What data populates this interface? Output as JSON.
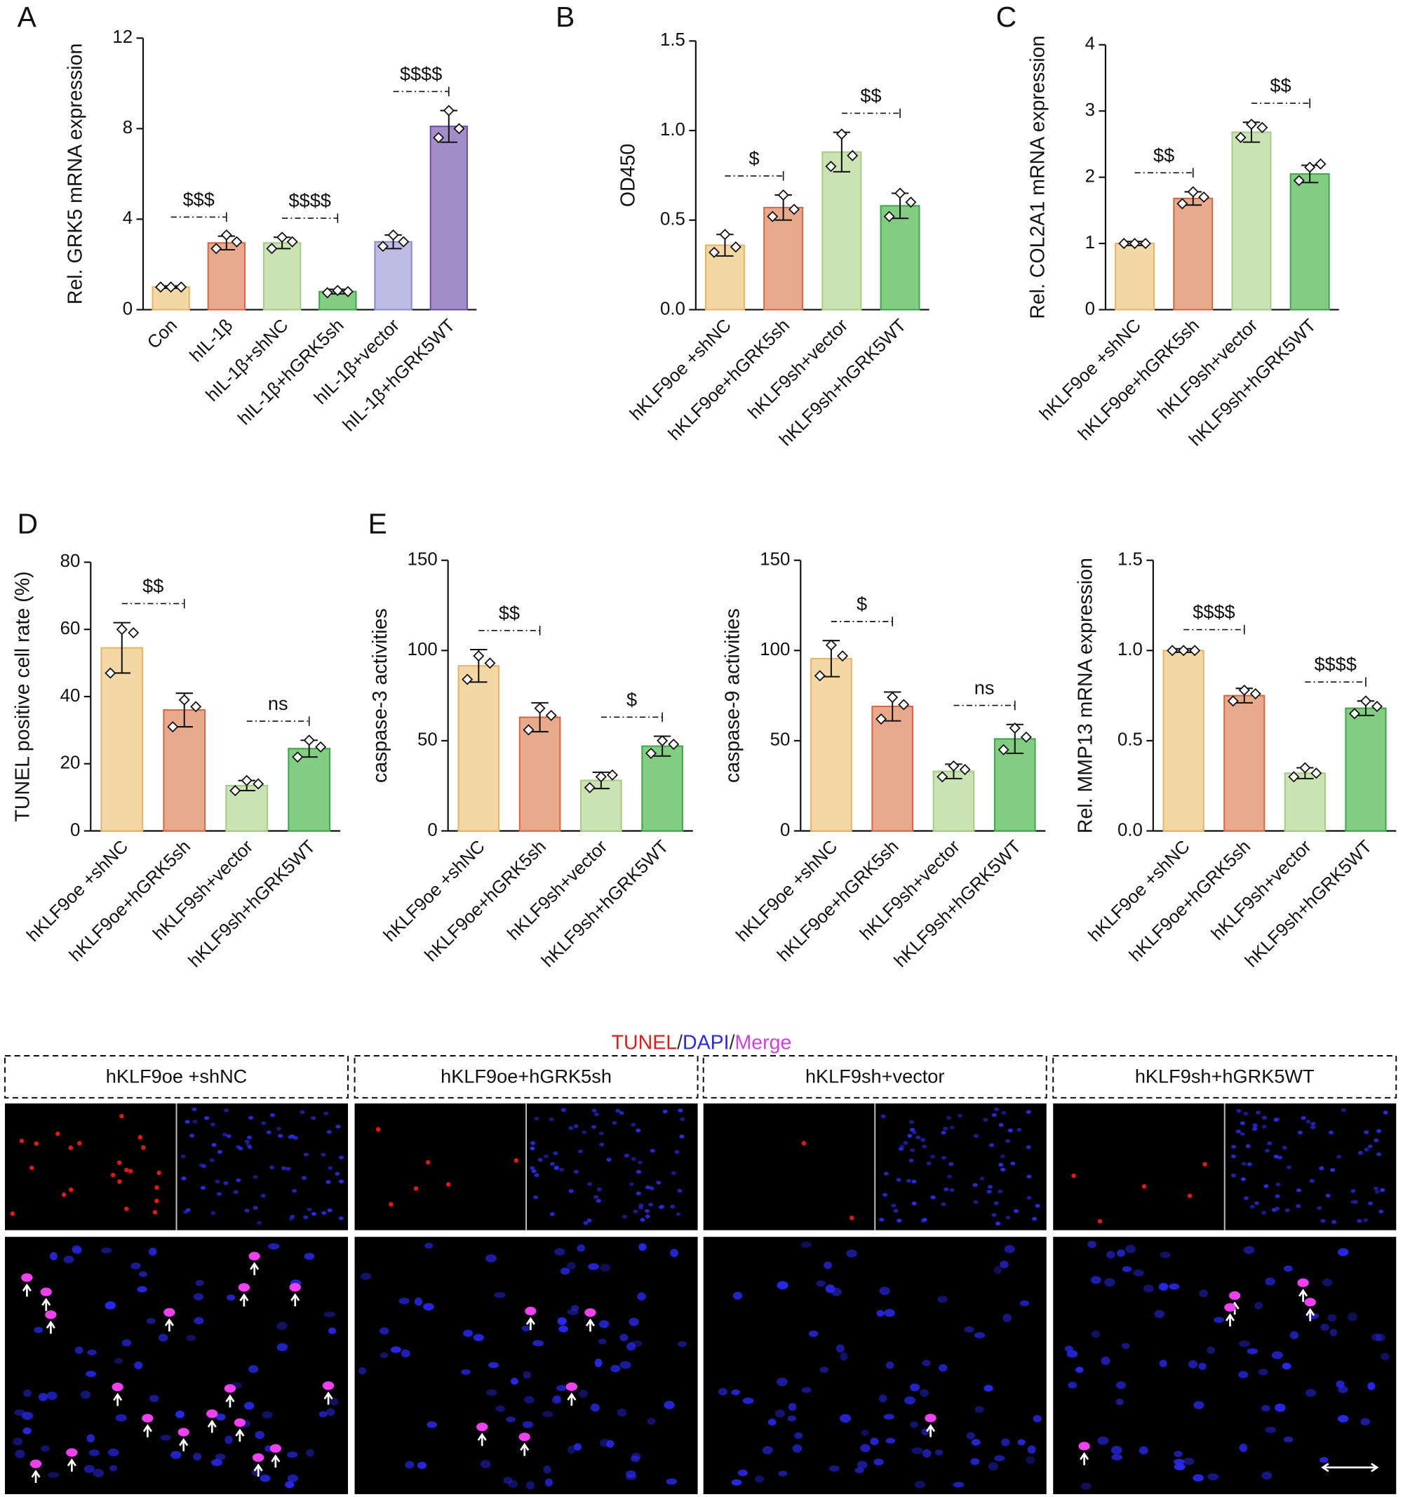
{
  "panel_labels": [
    "A",
    "B",
    "C",
    "D",
    "E"
  ],
  "chart_data": [
    {
      "type": "bar",
      "ylabel": "Rel. GRK5 mRNA expression",
      "categories": [
        "Con",
        "hIL-1β",
        "hIL-1β+shNC",
        "hIL-1β+hGRK5sh",
        "hIL-1β+vector",
        "hIL-1β+hGRK5WT"
      ],
      "values": [
        1.0,
        2.95,
        2.95,
        0.8,
        3.0,
        8.1
      ],
      "errors": [
        0.05,
        0.3,
        0.25,
        0.1,
        0.3,
        0.7
      ],
      "points": [
        [
          1.0,
          1.0,
          1.0
        ],
        [
          2.7,
          3.3,
          3.0
        ],
        [
          2.7,
          3.2,
          3.0
        ],
        [
          0.75,
          0.85,
          0.8
        ],
        [
          2.8,
          3.3,
          3.0
        ],
        [
          7.6,
          8.8,
          8.0
        ]
      ],
      "colors": [
        "#f3d7a4",
        "#e9a98c",
        "#cbe3b3",
        "#83cd83",
        "#bcbce5",
        "#a38dc9"
      ],
      "edge_colors": [
        "#e6b463",
        "#d26845",
        "#a5cc86",
        "#3ea64b",
        "#8b8bd0",
        "#6a4fa8"
      ],
      "ylim": [
        0,
        12
      ],
      "yticks": [
        0,
        4,
        8,
        12
      ],
      "annotations": [
        {
          "label": "$$$",
          "from": 0,
          "to": 1
        },
        {
          "label": "$$$$",
          "from": 2,
          "to": 3
        },
        {
          "label": "$$$$",
          "from": 4,
          "to": 5
        }
      ]
    },
    {
      "type": "bar",
      "ylabel": "OD450",
      "categories": [
        "hKLF9oe +shNC",
        "hKLF9oe+hGRK5sh",
        "hKLF9sh+vector",
        "hKLF9sh+hGRK5WT"
      ],
      "values": [
        0.36,
        0.57,
        0.88,
        0.58
      ],
      "errors": [
        0.06,
        0.07,
        0.11,
        0.07
      ],
      "points": [
        [
          0.32,
          0.42,
          0.35
        ],
        [
          0.52,
          0.64,
          0.56
        ],
        [
          0.8,
          0.98,
          0.86
        ],
        [
          0.52,
          0.65,
          0.6
        ]
      ],
      "colors": [
        "#f3d7a4",
        "#e9a98c",
        "#cbe3b3",
        "#83cd83"
      ],
      "edge_colors": [
        "#e6b463",
        "#d26845",
        "#a5cc86",
        "#3ea64b"
      ],
      "ylim": [
        0,
        1.5
      ],
      "yticks": [
        {
          "value": 0,
          "label": "0.0"
        },
        0.5,
        {
          "value": 1,
          "label": "1.0"
        },
        1.5
      ],
      "annotations": [
        {
          "label": "$",
          "from": 0,
          "to": 1
        },
        {
          "label": "$$",
          "from": 2,
          "to": 3
        }
      ]
    },
    {
      "type": "bar",
      "ylabel": "Rel. COL2A1 mRNA expression",
      "categories": [
        "hKLF9oe +shNC",
        "hKLF9oe+hGRK5sh",
        "hKLF9sh+vector",
        "hKLF9sh+hGRK5WT"
      ],
      "values": [
        1.0,
        1.68,
        2.68,
        2.05
      ],
      "errors": [
        0.03,
        0.1,
        0.15,
        0.13
      ],
      "points": [
        [
          1.0,
          1.0,
          1.0
        ],
        [
          1.6,
          1.78,
          1.7
        ],
        [
          2.6,
          2.8,
          2.75
        ],
        [
          1.95,
          2.15,
          2.2
        ]
      ],
      "colors": [
        "#f3d7a4",
        "#e9a98c",
        "#cbe3b3",
        "#83cd83"
      ],
      "edge_colors": [
        "#e6b463",
        "#d26845",
        "#a5cc86",
        "#3ea64b"
      ],
      "ylim": [
        0,
        4
      ],
      "yticks": [
        0,
        1,
        2,
        3,
        4
      ],
      "annotations": [
        {
          "label": "$$",
          "from": 0,
          "to": 1
        },
        {
          "label": "$$",
          "from": 2,
          "to": 3
        }
      ]
    },
    {
      "type": "bar",
      "ylabel": "TUNEL positive cell rate (%)",
      "categories": [
        "hKLF9oe +shNC",
        "hKLF9oe+hGRK5sh",
        "hKLF9sh+vector",
        "hKLF9sh+hGRK5WT"
      ],
      "values": [
        54.5,
        36,
        13.5,
        24.5
      ],
      "errors": [
        7.5,
        5,
        1.5,
        2.5
      ],
      "points": [
        [
          47,
          60,
          59
        ],
        [
          31,
          39,
          37
        ],
        [
          12,
          15,
          14
        ],
        [
          22,
          27,
          25
        ]
      ],
      "colors": [
        "#f3d7a4",
        "#e9a98c",
        "#cbe3b3",
        "#83cd83"
      ],
      "edge_colors": [
        "#e6b463",
        "#d26845",
        "#a5cc86",
        "#3ea64b"
      ],
      "ylim": [
        0,
        80
      ],
      "yticks": [
        0,
        20,
        40,
        60,
        80
      ],
      "annotations": [
        {
          "label": "$$",
          "from": 0,
          "to": 1
        },
        {
          "label": "ns",
          "from": 2,
          "to": 3
        }
      ]
    },
    {
      "type": "bar",
      "ylabel": "caspase-3 activities",
      "categories": [
        "hKLF9oe +shNC",
        "hKLF9oe+hGRK5sh",
        "hKLF9sh+vector",
        "hKLF9sh+hGRK5WT"
      ],
      "values": [
        91.5,
        63,
        28,
        47
      ],
      "errors": [
        9,
        8,
        4.5,
        5.5
      ],
      "points": [
        [
          84,
          97,
          93
        ],
        [
          56,
          68,
          64
        ],
        [
          24,
          30,
          31
        ],
        [
          43,
          50,
          48
        ]
      ],
      "colors": [
        "#f3d7a4",
        "#e9a98c",
        "#cbe3b3",
        "#83cd83"
      ],
      "edge_colors": [
        "#e6b463",
        "#d26845",
        "#a5cc86",
        "#3ea64b"
      ],
      "ylim": [
        0,
        150
      ],
      "yticks": [
        0,
        50,
        100,
        150
      ],
      "annotations": [
        {
          "label": "$$",
          "from": 0,
          "to": 1
        },
        {
          "label": "$",
          "from": 2,
          "to": 3
        }
      ]
    },
    {
      "type": "bar",
      "ylabel": "caspase-9 activities",
      "categories": [
        "hKLF9oe +shNC",
        "hKLF9oe+hGRK5sh",
        "hKLF9sh+vector",
        "hKLF9sh+hGRK5WT"
      ],
      "values": [
        95.5,
        69,
        33,
        51
      ],
      "errors": [
        10,
        8,
        4,
        8
      ],
      "points": [
        [
          86,
          103,
          97
        ],
        [
          62,
          74,
          70
        ],
        [
          30,
          36,
          34
        ],
        [
          45,
          57,
          52
        ]
      ],
      "colors": [
        "#f3d7a4",
        "#e9a98c",
        "#cbe3b3",
        "#83cd83"
      ],
      "edge_colors": [
        "#e6b463",
        "#d26845",
        "#a5cc86",
        "#3ea64b"
      ],
      "ylim": [
        0,
        150
      ],
      "yticks": [
        0,
        50,
        100,
        150
      ],
      "annotations": [
        {
          "label": "$",
          "from": 0,
          "to": 1
        },
        {
          "label": "ns",
          "from": 2,
          "to": 3
        }
      ]
    },
    {
      "type": "bar",
      "ylabel": "Rel. MMP13 mRNA expression",
      "categories": [
        "hKLF9oe +shNC",
        "hKLF9oe+hGRK5sh",
        "hKLF9sh+vector",
        "hKLF9sh+hGRK5WT"
      ],
      "values": [
        1.0,
        0.75,
        0.32,
        0.68
      ],
      "errors": [
        0.01,
        0.04,
        0.03,
        0.04
      ],
      "points": [
        [
          1.0,
          1.0,
          1.0
        ],
        [
          0.72,
          0.78,
          0.76
        ],
        [
          0.3,
          0.35,
          0.32
        ],
        [
          0.65,
          0.72,
          0.69
        ]
      ],
      "colors": [
        "#f3d7a4",
        "#e9a98c",
        "#cbe3b3",
        "#83cd83"
      ],
      "edge_colors": [
        "#e6b463",
        "#d26845",
        "#a5cc86",
        "#3ea64b"
      ],
      "ylim": [
        0,
        1.5
      ],
      "yticks": [
        {
          "value": 0,
          "label": "0.0"
        },
        0.5,
        {
          "value": 1,
          "label": "1.0"
        },
        1.5
      ],
      "annotations": [
        {
          "label": "$$$$",
          "from": 0,
          "to": 1
        },
        {
          "label": "$$$$",
          "from": 2,
          "to": 3
        }
      ]
    }
  ],
  "micrographs": {
    "legend": [
      {
        "text": "TUNEL",
        "color": "#d42020"
      },
      {
        "text": "/",
        "color": "#333333"
      },
      {
        "text": "DAPI",
        "color": "#2a2ae0"
      },
      {
        "text": "/",
        "color": "#333333"
      },
      {
        "text": "Merge",
        "color": "#d040e0"
      }
    ],
    "groups": [
      "hKLF9oe +shNC",
      "hKLF9oe+hGRK5sh",
      "hKLF9sh+vector",
      "hKLF9sh+hGRK5WT"
    ]
  }
}
